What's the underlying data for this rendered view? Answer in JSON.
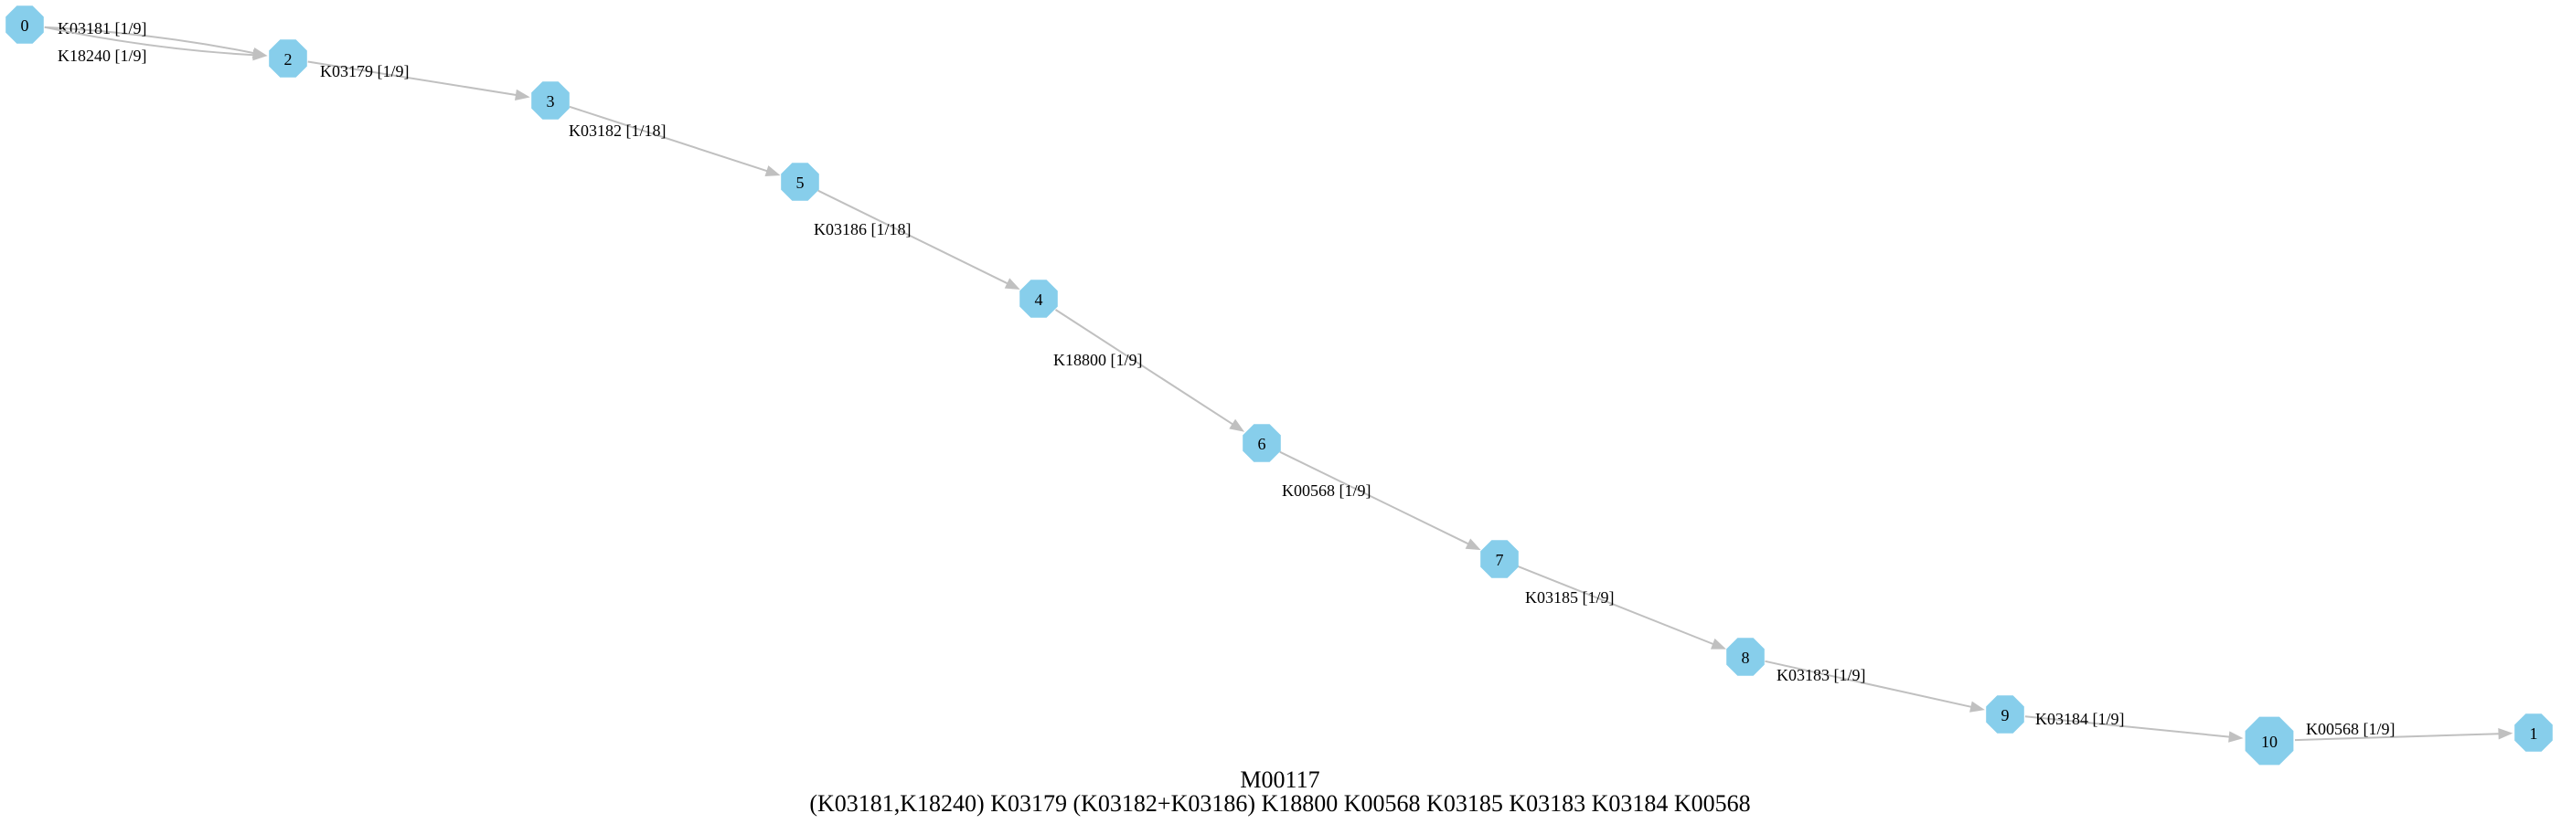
{
  "graph": {
    "title": "M00117",
    "definition": "(K03181,K18240) K03179 (K03182+K03186) K18800 K00568 K03185 K03183 K03184 K00568",
    "colors": {
      "node_fill": "#87ceeb",
      "edge": "#c0c0c0",
      "text": "#000000"
    },
    "nodes": [
      {
        "id": "0",
        "label": "0"
      },
      {
        "id": "2",
        "label": "2"
      },
      {
        "id": "3",
        "label": "3"
      },
      {
        "id": "5",
        "label": "5"
      },
      {
        "id": "4",
        "label": "4"
      },
      {
        "id": "6",
        "label": "6"
      },
      {
        "id": "7",
        "label": "7"
      },
      {
        "id": "8",
        "label": "8"
      },
      {
        "id": "9",
        "label": "9"
      },
      {
        "id": "10",
        "label": "10"
      },
      {
        "id": "1",
        "label": "1"
      }
    ],
    "edges": [
      {
        "from": "0",
        "to": "2",
        "label": "K03181 [1/9]"
      },
      {
        "from": "0",
        "to": "2",
        "label": "K18240 [1/9]"
      },
      {
        "from": "2",
        "to": "3",
        "label": "K03179 [1/9]"
      },
      {
        "from": "3",
        "to": "5",
        "label": "K03182 [1/18]"
      },
      {
        "from": "5",
        "to": "4",
        "label": "K03186 [1/18]"
      },
      {
        "from": "4",
        "to": "6",
        "label": "K18800 [1/9]"
      },
      {
        "from": "6",
        "to": "7",
        "label": "K00568 [1/9]"
      },
      {
        "from": "7",
        "to": "8",
        "label": "K03185 [1/9]"
      },
      {
        "from": "8",
        "to": "9",
        "label": "K03183 [1/9]"
      },
      {
        "from": "9",
        "to": "10",
        "label": "K03184 [1/9]"
      },
      {
        "from": "10",
        "to": "1",
        "label": "K00568 [1/9]"
      }
    ]
  }
}
